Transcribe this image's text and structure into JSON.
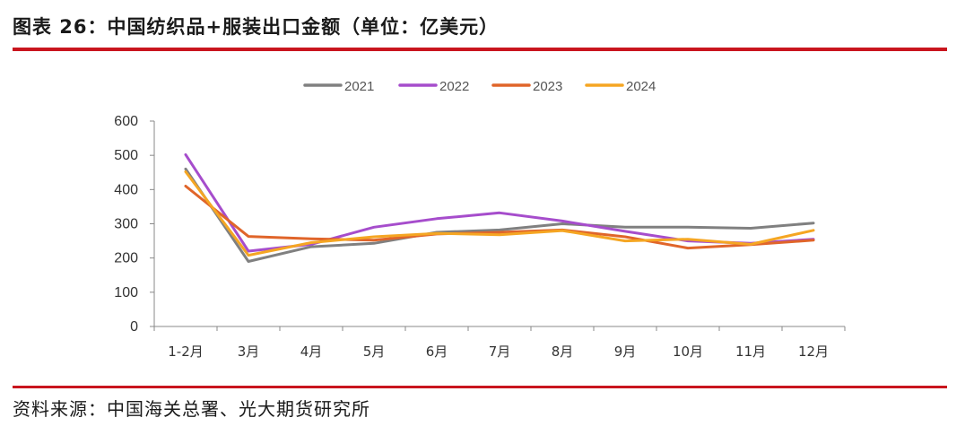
{
  "header": {
    "title": "图表 26：中国纺织品+服装出口金额（单位：亿美元）"
  },
  "footer": {
    "source": "资料来源：中国海关总署、光大期货研究所"
  },
  "colors": {
    "accent": "#c9151e"
  },
  "chart_data": {
    "type": "line",
    "title": "中国纺织品+服装出口金额（单位：亿美元）",
    "categories": [
      "1-2月",
      "3月",
      "4月",
      "5月",
      "6月",
      "7月",
      "8月",
      "9月",
      "10月",
      "11月",
      "12月"
    ],
    "ylim": [
      0,
      600
    ],
    "yticks": [
      0,
      100,
      200,
      300,
      400,
      500,
      600
    ],
    "legend_position": "top-center",
    "series": [
      {
        "name": "2021",
        "color": "#808080",
        "values": [
          460,
          190,
          233,
          243,
          275,
          282,
          300,
          290,
          290,
          287,
          302
        ]
      },
      {
        "name": "2022",
        "color": "#a64dcc",
        "values": [
          502,
          220,
          240,
          290,
          315,
          332,
          308,
          278,
          250,
          243,
          255
        ]
      },
      {
        "name": "2023",
        "color": "#e0652a",
        "values": [
          410,
          263,
          256,
          252,
          270,
          275,
          282,
          262,
          229,
          239,
          252
        ]
      },
      {
        "name": "2024",
        "color": "#f5a623",
        "values": [
          452,
          208,
          245,
          262,
          272,
          268,
          280,
          250,
          255,
          240,
          281
        ]
      }
    ]
  }
}
